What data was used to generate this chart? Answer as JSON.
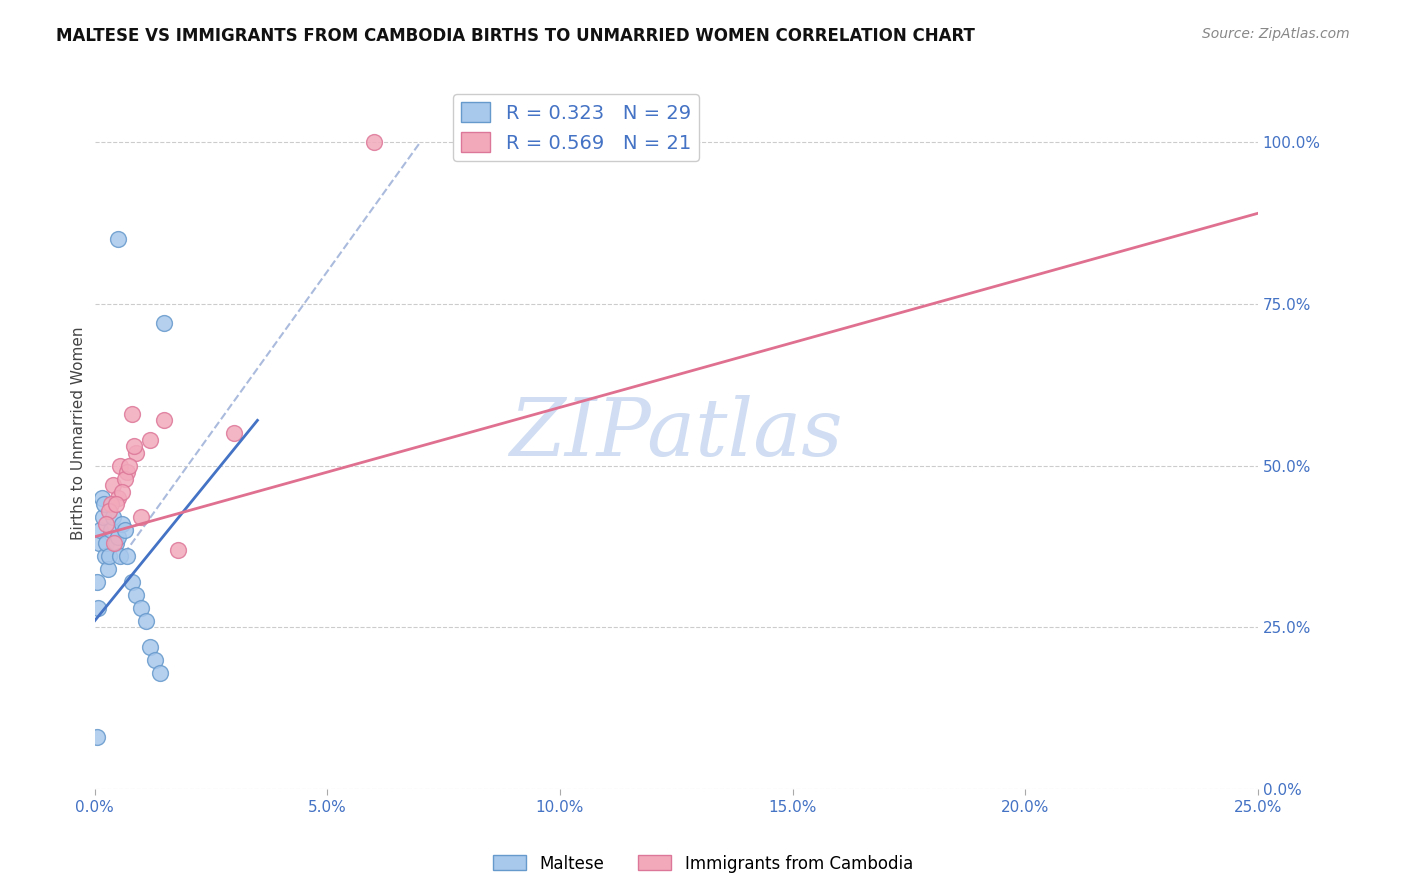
{
  "title": "MALTESE VS IMMIGRANTS FROM CAMBODIA BIRTHS TO UNMARRIED WOMEN CORRELATION CHART",
  "source": "Source: ZipAtlas.com",
  "xlabel_values": [
    0.0,
    5.0,
    10.0,
    15.0,
    20.0,
    25.0
  ],
  "ylabel_values": [
    0.0,
    25.0,
    50.0,
    75.0,
    100.0
  ],
  "xlim": [
    0.0,
    25.0
  ],
  "ylim": [
    0.0,
    110.0
  ],
  "ylabel": "Births to Unmarried Women",
  "blue_R": 0.323,
  "blue_N": 29,
  "pink_R": 0.569,
  "pink_N": 21,
  "blue_color": "#A8C8EC",
  "pink_color": "#F2AABB",
  "blue_edge_color": "#6699CC",
  "pink_edge_color": "#DD7799",
  "blue_line_color": "#4472C4",
  "pink_line_color": "#E07090",
  "dash_line_color": "#AABBDD",
  "grid_color": "#CCCCCC",
  "background_color": "#FFFFFF",
  "watermark": "ZIPatlas",
  "watermark_color": "#C8D8F0",
  "blue_scatter_x": [
    0.5,
    1.5,
    0.05,
    0.08,
    0.1,
    0.12,
    0.15,
    0.18,
    0.2,
    0.22,
    0.25,
    0.28,
    0.3,
    0.35,
    0.4,
    0.45,
    0.5,
    0.55,
    0.6,
    0.65,
    0.7,
    0.8,
    0.9,
    1.0,
    1.1,
    1.2,
    1.3,
    1.4,
    0.06
  ],
  "blue_scatter_y": [
    85.0,
    72.0,
    32.0,
    28.0,
    38.0,
    40.0,
    45.0,
    42.0,
    44.0,
    36.0,
    38.0,
    34.0,
    36.0,
    40.0,
    42.0,
    38.0,
    39.0,
    36.0,
    41.0,
    40.0,
    36.0,
    32.0,
    30.0,
    28.0,
    26.0,
    22.0,
    20.0,
    18.0,
    8.0
  ],
  "pink_scatter_x": [
    0.8,
    1.2,
    1.5,
    0.55,
    0.7,
    0.9,
    0.4,
    0.5,
    0.65,
    0.75,
    0.35,
    3.0,
    6.0,
    0.3,
    0.25,
    0.6,
    1.0,
    1.8,
    0.45,
    0.85,
    0.42
  ],
  "pink_scatter_y": [
    58.0,
    54.0,
    57.0,
    50.0,
    49.0,
    52.0,
    47.0,
    45.0,
    48.0,
    50.0,
    44.0,
    55.0,
    100.0,
    43.0,
    41.0,
    46.0,
    42.0,
    37.0,
    44.0,
    53.0,
    38.0
  ],
  "blue_line_x": [
    0.0,
    3.5
  ],
  "blue_line_y": [
    26.0,
    57.0
  ],
  "pink_line_x": [
    0.0,
    25.0
  ],
  "pink_line_y": [
    39.0,
    89.0
  ],
  "dash_line_x": [
    0.5,
    7.0
  ],
  "dash_line_y": [
    35.0,
    100.0
  ]
}
